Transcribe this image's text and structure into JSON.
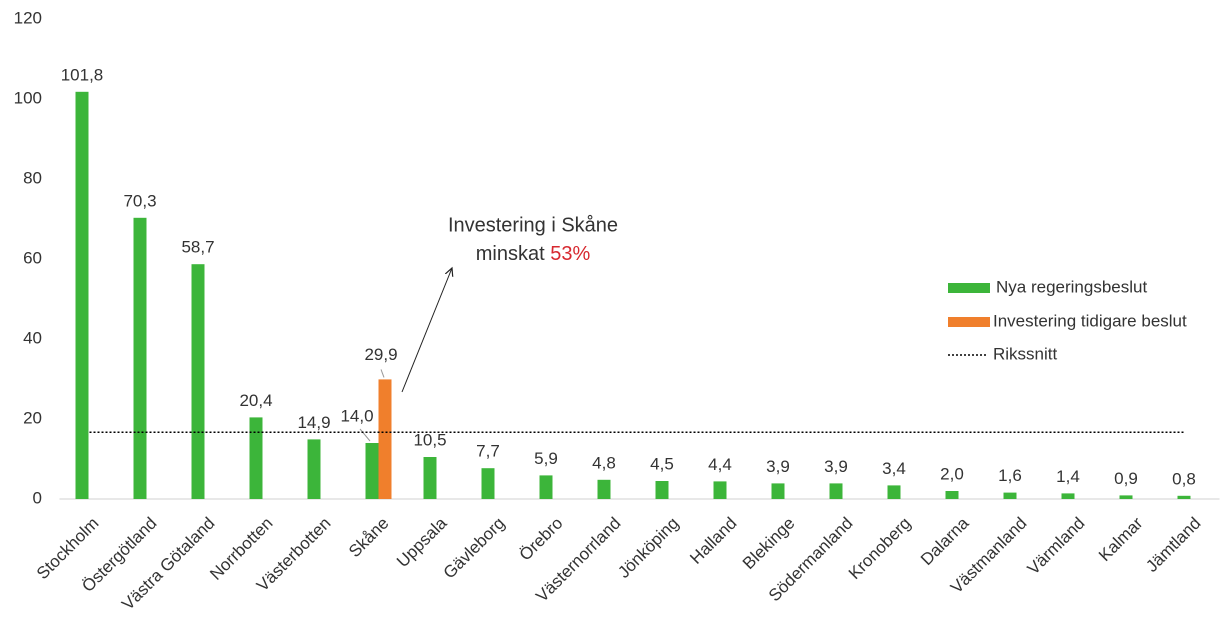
{
  "chart_data": {
    "type": "bar",
    "categories": [
      "Stockholm",
      "Östergötland",
      "Västra Götaland",
      "Norrbotten",
      "Västerbotten",
      "Skåne",
      "Uppsala",
      "Gävleborg",
      "Örebro",
      "Västernorrland",
      "Jönköping",
      "Halland",
      "Blekinge",
      "Södermanland",
      "Kronoberg",
      "Dalarna",
      "Västmanland",
      "Värmland",
      "Kalmar",
      "Jämtland"
    ],
    "series": [
      {
        "name": "Nya regeringsbeslut",
        "color": "#3cb53a",
        "values": [
          101.8,
          70.3,
          58.7,
          20.4,
          14.9,
          14.0,
          10.5,
          7.7,
          5.9,
          4.8,
          4.5,
          4.4,
          3.9,
          3.9,
          3.4,
          2.0,
          1.6,
          1.4,
          0.9,
          0.8
        ],
        "value_labels": [
          "101,8",
          "70,3",
          "58,7",
          "20,4",
          "14,9",
          "14,0",
          "10,5",
          "7,7",
          "5,9",
          "4,8",
          "4,5",
          "4,4",
          "3,9",
          "3,9",
          "3,4",
          "2,0",
          "1,6",
          "1,4",
          "0,9",
          "0,8"
        ]
      },
      {
        "name": "Investering tidigare beslut",
        "color": "#f07f2c",
        "values": [
          null,
          null,
          null,
          null,
          null,
          29.9,
          null,
          null,
          null,
          null,
          null,
          null,
          null,
          null,
          null,
          null,
          null,
          null,
          null,
          null
        ],
        "value_labels": [
          null,
          null,
          null,
          null,
          null,
          "29,9",
          null,
          null,
          null,
          null,
          null,
          null,
          null,
          null,
          null,
          null,
          null,
          null,
          null,
          null
        ]
      }
    ],
    "reference_line": {
      "name": "Rikssnitt",
      "value": 16.7,
      "color": "#000000"
    },
    "annotation": {
      "line1": "Investering i Skåne",
      "line2": "minskat",
      "highlight": "53%",
      "highlight_color": "#d7282f"
    },
    "ylim": [
      0,
      120
    ],
    "yticks": [
      0,
      20,
      40,
      60,
      80,
      100,
      120
    ],
    "grid": false,
    "legend": "right"
  }
}
